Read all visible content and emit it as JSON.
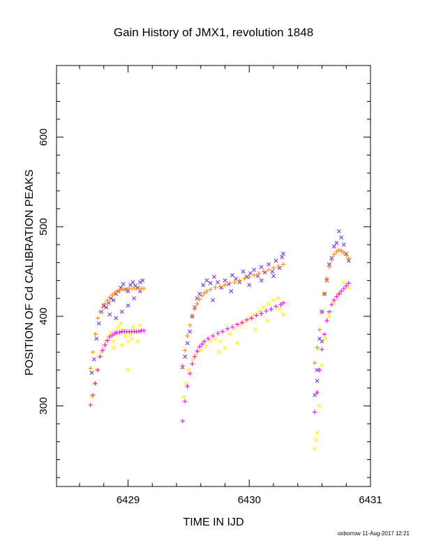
{
  "chart_data": {
    "type": "scatter",
    "title": "Gain History of JMX1, revolution 1848",
    "xlabel": "TIME IN IJD",
    "ylabel": "POSITION OF Cd CALIBRATION PEAKS",
    "xlim": [
      6428.41,
      6431.0
    ],
    "ylim": [
      210,
      680
    ],
    "xticks": [
      6429,
      6430,
      6431
    ],
    "yticks": [
      300,
      400,
      500,
      600
    ],
    "grid": false,
    "footer": "oxborrow 11-Aug-2017 12:21",
    "series": [
      {
        "marker": "x",
        "color": "#7733dd",
        "points": [
          [
            6428.7,
            337
          ],
          [
            6428.72,
            352
          ],
          [
            6428.74,
            375
          ],
          [
            6428.76,
            392
          ],
          [
            6428.78,
            405
          ],
          [
            6428.8,
            412
          ],
          [
            6428.82,
            410
          ],
          [
            6428.84,
            415
          ],
          [
            6428.86,
            420
          ],
          [
            6428.88,
            418
          ],
          [
            6428.9,
            425
          ],
          [
            6428.92,
            428
          ],
          [
            6428.94,
            432
          ],
          [
            6428.96,
            436
          ],
          [
            6428.98,
            430
          ],
          [
            6429.0,
            428
          ],
          [
            6429.02,
            435
          ],
          [
            6429.04,
            438
          ],
          [
            6429.06,
            434
          ],
          [
            6429.08,
            432
          ],
          [
            6429.1,
            438
          ],
          [
            6429.12,
            440
          ],
          [
            6428.85,
            402
          ],
          [
            6428.9,
            398
          ],
          [
            6428.95,
            405
          ],
          [
            6429.0,
            412
          ],
          [
            6429.05,
            420
          ],
          [
            6429.1,
            428
          ],
          [
            6429.45,
            343
          ],
          [
            6429.47,
            355
          ],
          [
            6429.49,
            370
          ],
          [
            6429.51,
            383
          ],
          [
            6429.53,
            400
          ],
          [
            6429.55,
            410
          ],
          [
            6429.57,
            420
          ],
          [
            6429.59,
            425
          ],
          [
            6429.62,
            435
          ],
          [
            6429.65,
            440
          ],
          [
            6429.68,
            437
          ],
          [
            6429.71,
            444
          ],
          [
            6429.74,
            438
          ],
          [
            6429.77,
            432
          ],
          [
            6429.8,
            440
          ],
          [
            6429.83,
            436
          ],
          [
            6429.86,
            446
          ],
          [
            6429.89,
            442
          ],
          [
            6429.92,
            438
          ],
          [
            6429.95,
            450
          ],
          [
            6429.98,
            444
          ],
          [
            6430.01,
            448
          ],
          [
            6430.04,
            452
          ],
          [
            6430.07,
            445
          ],
          [
            6430.1,
            455
          ],
          [
            6430.13,
            449
          ],
          [
            6430.16,
            458
          ],
          [
            6430.19,
            450
          ],
          [
            6430.22,
            462
          ],
          [
            6430.25,
            454
          ],
          [
            6430.27,
            466
          ],
          [
            6430.28,
            470
          ],
          [
            6429.7,
            418
          ],
          [
            6429.85,
            428
          ],
          [
            6430.0,
            435
          ],
          [
            6430.1,
            440
          ],
          [
            6430.2,
            445
          ],
          [
            6430.54,
            312
          ],
          [
            6430.56,
            340
          ],
          [
            6430.58,
            375
          ],
          [
            6430.6,
            405
          ],
          [
            6430.62,
            425
          ],
          [
            6430.64,
            440
          ],
          [
            6430.66,
            458
          ],
          [
            6430.68,
            465
          ],
          [
            6430.7,
            478
          ],
          [
            6430.72,
            482
          ],
          [
            6430.74,
            495
          ],
          [
            6430.76,
            488
          ],
          [
            6430.78,
            480
          ],
          [
            6430.8,
            470
          ],
          [
            6430.82,
            462
          ],
          [
            6430.56,
            328
          ],
          [
            6430.6,
            372
          ]
        ]
      },
      {
        "marker": "x",
        "color": "#ffee00",
        "points": [
          [
            6428.7,
            310
          ],
          [
            6428.72,
            325
          ],
          [
            6428.74,
            340
          ],
          [
            6428.76,
            355
          ],
          [
            6428.78,
            360
          ],
          [
            6428.8,
            365
          ],
          [
            6428.82,
            372
          ],
          [
            6428.84,
            378
          ],
          [
            6428.86,
            382
          ],
          [
            6428.88,
            372
          ],
          [
            6428.9,
            380
          ],
          [
            6428.92,
            388
          ],
          [
            6428.94,
            392
          ],
          [
            6428.96,
            385
          ],
          [
            6428.98,
            378
          ],
          [
            6429.0,
            372
          ],
          [
            6429.02,
            380
          ],
          [
            6429.04,
            388
          ],
          [
            6429.06,
            383
          ],
          [
            6429.08,
            372
          ],
          [
            6429.1,
            390
          ],
          [
            6428.88,
            365
          ],
          [
            6428.95,
            368
          ],
          [
            6429.0,
            340
          ],
          [
            6429.03,
            375
          ],
          [
            6429.46,
            310
          ],
          [
            6429.48,
            325
          ],
          [
            6429.5,
            340
          ],
          [
            6429.53,
            352
          ],
          [
            6429.56,
            358
          ],
          [
            6429.6,
            362
          ],
          [
            6429.64,
            366
          ],
          [
            6429.68,
            372
          ],
          [
            6429.72,
            375
          ],
          [
            6429.76,
            372
          ],
          [
            6429.8,
            365
          ],
          [
            6429.84,
            380
          ],
          [
            6429.88,
            386
          ],
          [
            6429.92,
            390
          ],
          [
            6429.96,
            394
          ],
          [
            6430.0,
            398
          ],
          [
            6430.04,
            402
          ],
          [
            6430.08,
            405
          ],
          [
            6430.12,
            410
          ],
          [
            6430.16,
            414
          ],
          [
            6430.2,
            418
          ],
          [
            6430.24,
            420
          ],
          [
            6430.28,
            402
          ],
          [
            6429.75,
            360
          ],
          [
            6429.9,
            370
          ],
          [
            6430.05,
            385
          ],
          [
            6430.15,
            395
          ],
          [
            6430.25,
            408
          ],
          [
            6430.54,
            252
          ],
          [
            6430.56,
            270
          ],
          [
            6430.58,
            300
          ],
          [
            6430.6,
            345
          ],
          [
            6430.63,
            375
          ],
          [
            6430.66,
            400
          ],
          [
            6430.7,
            415
          ],
          [
            6430.74,
            425
          ],
          [
            6430.78,
            438
          ],
          [
            6430.82,
            432
          ],
          [
            6430.55,
            262
          ]
        ]
      },
      {
        "marker": "+",
        "color": "#ff8800",
        "points": [
          [
            6428.69,
            342
          ],
          [
            6428.71,
            360
          ],
          [
            6428.73,
            380
          ],
          [
            6428.75,
            398
          ],
          [
            6428.77,
            405
          ],
          [
            6428.79,
            410
          ],
          [
            6428.81,
            414
          ],
          [
            6428.83,
            418
          ],
          [
            6428.85,
            421
          ],
          [
            6428.87,
            424
          ],
          [
            6428.89,
            426
          ],
          [
            6428.91,
            428
          ],
          [
            6428.93,
            429
          ],
          [
            6428.95,
            430
          ],
          [
            6428.97,
            430
          ],
          [
            6428.99,
            430
          ],
          [
            6429.01,
            431
          ],
          [
            6429.03,
            431
          ],
          [
            6429.05,
            431
          ],
          [
            6429.07,
            431
          ],
          [
            6429.09,
            431
          ],
          [
            6429.11,
            431
          ],
          [
            6429.13,
            431
          ],
          [
            6429.45,
            345
          ],
          [
            6429.47,
            362
          ],
          [
            6429.49,
            378
          ],
          [
            6429.51,
            390
          ],
          [
            6429.53,
            400
          ],
          [
            6429.55,
            408
          ],
          [
            6429.57,
            414
          ],
          [
            6429.59,
            419
          ],
          [
            6429.61,
            423
          ],
          [
            6429.63,
            426
          ],
          [
            6429.65,
            428
          ],
          [
            6429.68,
            430
          ],
          [
            6429.72,
            432
          ],
          [
            6429.76,
            433
          ],
          [
            6429.8,
            435
          ],
          [
            6429.84,
            437
          ],
          [
            6429.88,
            438
          ],
          [
            6429.92,
            440
          ],
          [
            6429.96,
            442
          ],
          [
            6430.0,
            444
          ],
          [
            6430.04,
            446
          ],
          [
            6430.08,
            448
          ],
          [
            6430.12,
            450
          ],
          [
            6430.16,
            452
          ],
          [
            6430.2,
            454
          ],
          [
            6430.24,
            456
          ],
          [
            6430.28,
            458
          ],
          [
            6430.54,
            348
          ],
          [
            6430.56,
            365
          ],
          [
            6430.58,
            385
          ],
          [
            6430.6,
            405
          ],
          [
            6430.62,
            425
          ],
          [
            6430.64,
            442
          ],
          [
            6430.66,
            455
          ],
          [
            6430.68,
            463
          ],
          [
            6430.7,
            469
          ],
          [
            6430.72,
            472
          ],
          [
            6430.74,
            474
          ],
          [
            6430.76,
            473
          ],
          [
            6430.78,
            471
          ],
          [
            6430.8,
            468
          ],
          [
            6430.82,
            465
          ]
        ]
      },
      {
        "marker": "+",
        "color": "#ff00ff",
        "points": [
          [
            6428.69,
            301
          ],
          [
            6428.71,
            312
          ],
          [
            6428.73,
            325
          ],
          [
            6428.75,
            340
          ],
          [
            6428.77,
            355
          ],
          [
            6428.79,
            362
          ],
          [
            6428.81,
            368
          ],
          [
            6428.83,
            373
          ],
          [
            6428.85,
            377
          ],
          [
            6428.87,
            379
          ],
          [
            6428.89,
            381
          ],
          [
            6428.91,
            382
          ],
          [
            6428.93,
            382
          ],
          [
            6428.95,
            383
          ],
          [
            6428.97,
            383
          ],
          [
            6428.99,
            383
          ],
          [
            6429.01,
            383
          ],
          [
            6429.03,
            383
          ],
          [
            6429.05,
            383
          ],
          [
            6429.07,
            383
          ],
          [
            6429.09,
            383
          ],
          [
            6429.11,
            384
          ],
          [
            6429.13,
            384
          ],
          [
            6429.45,
            283
          ],
          [
            6429.47,
            305
          ],
          [
            6429.49,
            322
          ],
          [
            6429.51,
            336
          ],
          [
            6429.53,
            347
          ],
          [
            6429.55,
            355
          ],
          [
            6429.57,
            361
          ],
          [
            6429.59,
            366
          ],
          [
            6429.61,
            369
          ],
          [
            6429.63,
            372
          ],
          [
            6429.66,
            375
          ],
          [
            6429.7,
            378
          ],
          [
            6429.74,
            381
          ],
          [
            6429.78,
            383
          ],
          [
            6429.82,
            386
          ],
          [
            6429.86,
            388
          ],
          [
            6429.9,
            391
          ],
          [
            6429.94,
            393
          ],
          [
            6429.98,
            396
          ],
          [
            6430.02,
            398
          ],
          [
            6430.06,
            401
          ],
          [
            6430.1,
            403
          ],
          [
            6430.14,
            406
          ],
          [
            6430.18,
            408
          ],
          [
            6430.22,
            411
          ],
          [
            6430.26,
            413
          ],
          [
            6430.28,
            415
          ],
          [
            6430.54,
            293
          ],
          [
            6430.56,
            315
          ],
          [
            6430.58,
            340
          ],
          [
            6430.6,
            363
          ],
          [
            6430.62,
            380
          ],
          [
            6430.64,
            395
          ],
          [
            6430.66,
            405
          ],
          [
            6430.68,
            413
          ],
          [
            6430.7,
            418
          ],
          [
            6430.72,
            422
          ],
          [
            6430.74,
            425
          ],
          [
            6430.76,
            428
          ],
          [
            6430.78,
            431
          ],
          [
            6430.8,
            434
          ],
          [
            6430.82,
            437
          ]
        ]
      }
    ]
  }
}
